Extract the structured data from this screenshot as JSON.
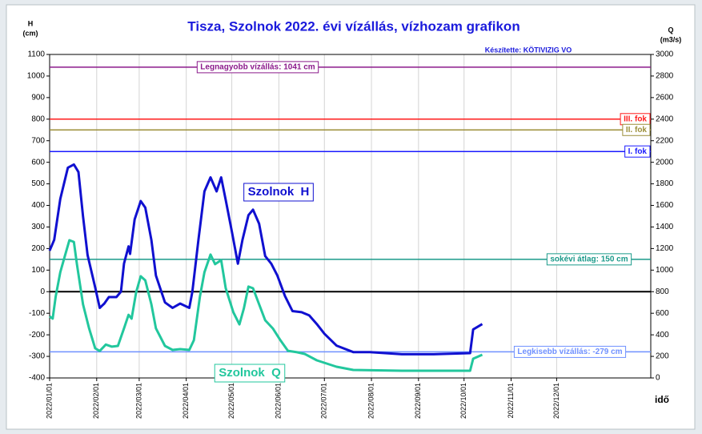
{
  "chart_data": {
    "type": "line",
    "title": "Tisza, Szolnok 2022. évi vízállás, vízhozam  grafikon",
    "subtitle": "Készítette: KÖTIVIZIG VO",
    "ylabel": [
      "H",
      "(cm)"
    ],
    "y2label": [
      "Q",
      "(m3/s)"
    ],
    "xlabel": "idő",
    "xlim": [
      "2022/01/01",
      "2023/02/01"
    ],
    "xticks": [
      "2022/01/01",
      "2022/02/01",
      "2022/03/01",
      "2022/04/01",
      "2022/05/01",
      "2022/06/01",
      "2022/07/01",
      "2022/08/01",
      "2022/09/01",
      "2022/10/01",
      "2022/11/01",
      "2022/12/01"
    ],
    "ylim": [
      -400,
      1100
    ],
    "yticks": [
      -400,
      -300,
      -200,
      -100,
      0,
      100,
      200,
      300,
      400,
      500,
      600,
      700,
      800,
      900,
      1000,
      1100
    ],
    "y2lim": [
      0,
      3000
    ],
    "y2ticks": [
      0,
      200,
      400,
      600,
      800,
      1000,
      1200,
      1400,
      1600,
      1800,
      2000,
      2200,
      2400,
      2600,
      2800,
      3000
    ],
    "grid": true,
    "series": [
      {
        "name": "Szolnok  H",
        "color": "#1010d0",
        "x": [
          "2022/01/01",
          "2022/01/04",
          "2022/01/08",
          "2022/01/13",
          "2022/01/17",
          "2022/01/20",
          "2022/01/23",
          "2022/01/26",
          "2022/01/31",
          "2022/02/03",
          "2022/02/06",
          "2022/02/09",
          "2022/02/14",
          "2022/02/17",
          "2022/02/19",
          "2022/02/22",
          "2022/02/23",
          "2022/02/26",
          "2022/03/02",
          "2022/03/05",
          "2022/03/09",
          "2022/03/12",
          "2022/03/18",
          "2022/03/23",
          "2022/03/28",
          "2022/04/03",
          "2022/04/05",
          "2022/04/09",
          "2022/04/13",
          "2022/04/17",
          "2022/04/21",
          "2022/04/24",
          "2022/04/27",
          "2022/05/01",
          "2022/05/05",
          "2022/05/08",
          "2022/05/12",
          "2022/05/15",
          "2022/05/19",
          "2022/05/23",
          "2022/05/27",
          "2022/05/31",
          "2022/06/05",
          "2022/06/10",
          "2022/06/16",
          "2022/06/21",
          "2022/06/26",
          "2022/07/01",
          "2022/07/09",
          "2022/07/20",
          "2022/07/31",
          "2022/08/10",
          "2022/08/21",
          "2022/09/11",
          "2022/10/05",
          "2022/10/07",
          "2022/10/13"
        ],
        "values": [
          190,
          240,
          430,
          575,
          590,
          555,
          350,
          170,
          20,
          -75,
          -55,
          -25,
          -25,
          0,
          130,
          210,
          175,
          335,
          420,
          390,
          240,
          75,
          -50,
          -75,
          -55,
          -75,
          0,
          240,
          465,
          530,
          465,
          530,
          425,
          280,
          130,
          240,
          355,
          380,
          315,
          165,
          130,
          75,
          -20,
          -90,
          -95,
          -110,
          -150,
          -195,
          -250,
          -280,
          -280,
          -285,
          -290,
          -290,
          -285,
          -175,
          -150
        ]
      },
      {
        "name": "Szolnok  Q",
        "color": "#22c79d",
        "axis": "y2",
        "x": [
          "2022/01/01",
          "2022/01/03",
          "2022/01/05",
          "2022/01/08",
          "2022/01/11",
          "2022/01/14",
          "2022/01/17",
          "2022/01/19",
          "2022/01/23",
          "2022/01/27",
          "2022/01/31",
          "2022/02/03",
          "2022/02/07",
          "2022/02/11",
          "2022/02/15",
          "2022/02/19",
          "2022/02/22",
          "2022/02/24",
          "2022/02/27",
          "2022/03/02",
          "2022/03/05",
          "2022/03/09",
          "2022/03/12",
          "2022/03/18",
          "2022/03/23",
          "2022/03/28",
          "2022/04/03",
          "2022/04/06",
          "2022/04/10",
          "2022/04/13",
          "2022/04/17",
          "2022/04/20",
          "2022/04/24",
          "2022/04/27",
          "2022/05/02",
          "2022/05/06",
          "2022/05/09",
          "2022/05/12",
          "2022/05/15",
          "2022/05/19",
          "2022/05/23",
          "2022/05/28",
          "2022/06/02",
          "2022/06/07",
          "2022/06/13",
          "2022/06/18",
          "2022/06/26",
          "2022/07/09",
          "2022/07/20",
          "2022/08/21",
          "2022/10/05",
          "2022/10/07",
          "2022/10/13"
        ],
        "values": [
          570,
          550,
          757,
          980,
          1130,
          1277,
          1262,
          1055,
          683,
          460,
          275,
          250,
          310,
          290,
          297,
          460,
          585,
          550,
          795,
          943,
          905,
          683,
          460,
          297,
          260,
          267,
          260,
          350,
          757,
          980,
          1144,
          1055,
          1092,
          832,
          610,
          497,
          646,
          847,
          832,
          683,
          535,
          460,
          350,
          252,
          238,
          223,
          163,
          104,
          74,
          67,
          67,
          178,
          215
        ]
      }
    ],
    "reference_lines": [
      {
        "value": 1041,
        "label": "Legnagyobb vízállás: 1041 cm",
        "color": "#8b1a8b"
      },
      {
        "value": 800,
        "label": "III. fok",
        "color": "#ff1a1a"
      },
      {
        "value": 750,
        "label": "II. fok",
        "color": "#9c8f3a"
      },
      {
        "value": 650,
        "label": "I. fok",
        "color": "#1a1aff"
      },
      {
        "value": 150,
        "label": "sokévi átlag: 150 cm",
        "color": "#1a9a8a"
      },
      {
        "value": 0,
        "color": "#000000"
      },
      {
        "value": -279,
        "label": "Legkisebb vízállás: -279 cm",
        "color": "#6f90ff"
      }
    ]
  }
}
